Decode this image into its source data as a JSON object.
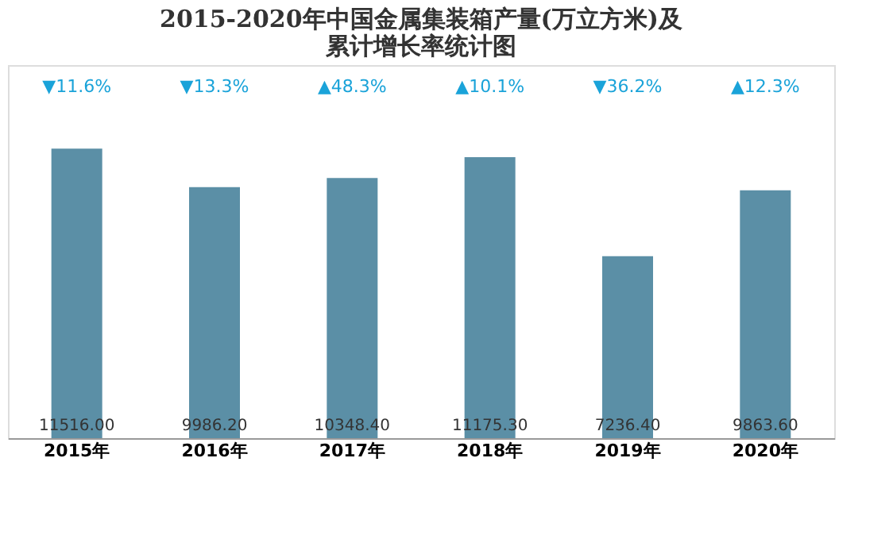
{
  "chart_data": {
    "type": "bar",
    "title": "2015-2020年中国金属集装箱产量(万立方米)及累计增长率统计图",
    "categories": [
      "2015年",
      "2016年",
      "2017年",
      "2018年",
      "2019年",
      "2020年"
    ],
    "values": [
      11516.0,
      9986.2,
      10348.4,
      11175.3,
      7236.4,
      9863.6
    ],
    "value_labels": [
      "11516.00",
      "9986.20",
      "10348.40",
      "11175.30",
      "7236.40",
      "9863.60"
    ],
    "color": "#5b8fa6",
    "annotations": [
      "▼11.6%",
      "▼13.3%",
      "▲48.3%",
      "▲10.1%",
      "▼36.2%",
      "▲12.3%"
    ],
    "grid": false
  }
}
